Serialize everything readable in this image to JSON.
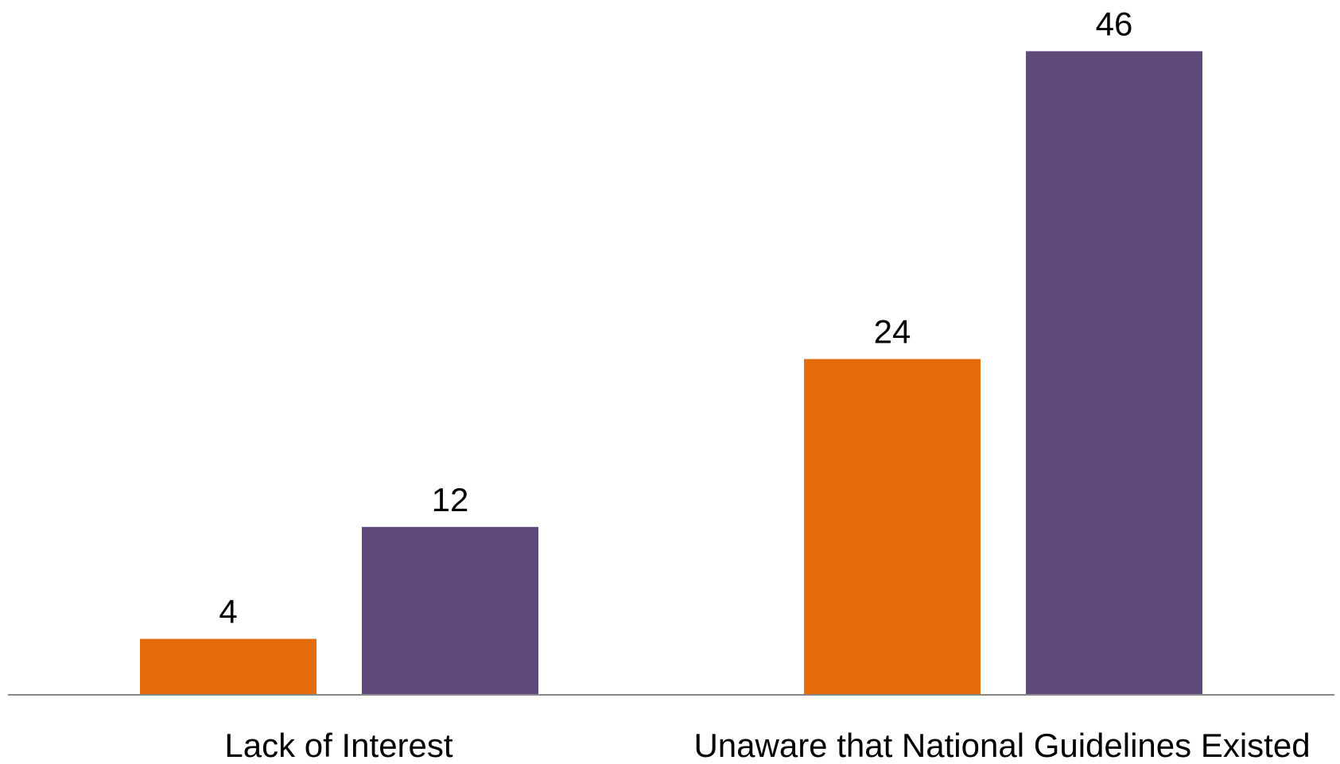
{
  "chart_data": {
    "type": "bar",
    "categories": [
      "Lack of Interest",
      "Unaware that National Guidelines Existed"
    ],
    "series": [
      {
        "values": [
          4,
          24
        ],
        "color": "#E46C0A"
      },
      {
        "values": [
          12,
          46
        ],
        "color": "#604A7B"
      }
    ],
    "ylim": [
      0,
      50
    ],
    "grid": false,
    "legend": "none",
    "data_labels": true,
    "axis_color": "#888888"
  }
}
